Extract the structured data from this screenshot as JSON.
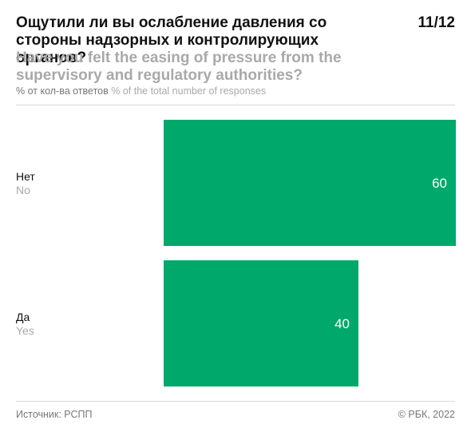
{
  "header": {
    "title_ru": "Ощутили ли вы ослабление давления со стороны надзорных и контролирующих органов?",
    "title_en": "Have you felt the easing of pressure from the supervisory and regulatory authorities?",
    "page": "11/12",
    "unit_ru": "% от кол-ва ответов",
    "unit_en": "% of the total number of responses"
  },
  "chart_data": {
    "type": "bar",
    "orientation": "horizontal",
    "categories": [
      "Нет",
      "Да"
    ],
    "categories_en": [
      "No",
      "Yes"
    ],
    "values": [
      60,
      40
    ],
    "xlim": [
      0,
      60
    ],
    "grid": false,
    "bar_color": "#00a96b",
    "value_label_color": "#ffffff"
  },
  "footer": {
    "source": "Источник: РСПП",
    "copyright": "© РБК, 2022"
  }
}
